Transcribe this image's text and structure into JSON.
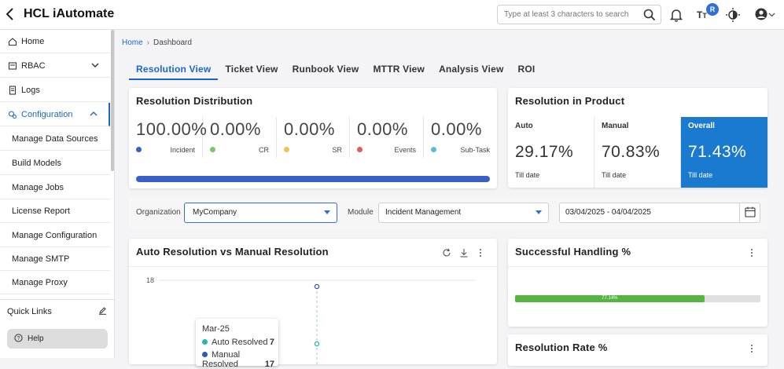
{
  "app": {
    "title": "HCL iAutomate"
  },
  "search": {
    "placeholder": "Type at least 3 characters to search"
  },
  "header": {
    "avatar_badge": "R"
  },
  "sidebar": {
    "items": [
      {
        "label": "Home"
      },
      {
        "label": "RBAC"
      },
      {
        "label": "Logs"
      },
      {
        "label": "Configuration"
      },
      {
        "label": "Manage Data Sources"
      },
      {
        "label": "Build Models"
      },
      {
        "label": "Manage Jobs"
      },
      {
        "label": "License Report"
      },
      {
        "label": "Manage Configuration"
      },
      {
        "label": "Manage SMTP"
      },
      {
        "label": "Manage Proxy"
      }
    ],
    "quick_links": "Quick Links",
    "help": "Help"
  },
  "breadcrumb": {
    "home": "Home",
    "current": "Dashboard"
  },
  "tabs": [
    {
      "label": "Resolution View"
    },
    {
      "label": "Ticket View"
    },
    {
      "label": "Runbook View"
    },
    {
      "label": "MTTR View"
    },
    {
      "label": "Analysis View"
    },
    {
      "label": "ROI"
    }
  ],
  "distribution": {
    "title": "Resolution Distribution",
    "items": [
      {
        "value": "100.00%",
        "label": "Incident",
        "color": "#3b5fc8"
      },
      {
        "value": "0.00%",
        "label": "CR",
        "color": "#7cc56b"
      },
      {
        "value": "0.00%",
        "label": "SR",
        "color": "#f2c24a"
      },
      {
        "value": "0.00%",
        "label": "Events",
        "color": "#e25c5c"
      },
      {
        "value": "0.00%",
        "label": "Sub-Task",
        "color": "#5bbcd8"
      }
    ]
  },
  "product": {
    "title": "Resolution in Product",
    "items": [
      {
        "header": "Auto",
        "value": "29.17%",
        "sub": "Till date"
      },
      {
        "header": "Manual",
        "value": "70.83%",
        "sub": "Till date"
      },
      {
        "header": "Overall",
        "value": "71.43%",
        "sub": "Till date"
      }
    ]
  },
  "filters": {
    "organization_label": "Organization",
    "organization_value": "MyCompany",
    "module_label": "Module",
    "module_value": "Incident Management",
    "date_range": "03/04/2025 - 04/04/2025"
  },
  "auto_vs_manual": {
    "title": "Auto Resolution vs Manual Resolution",
    "y_tick": "18",
    "tooltip": {
      "title": "Mar-25",
      "rows": [
        {
          "label": "Auto Resolved",
          "value": "7",
          "color": "#26b5b5"
        },
        {
          "label": "Manual Resolved",
          "value": "17",
          "color": "#2f57b5"
        }
      ]
    }
  },
  "handling": {
    "title": "Successful Handling %",
    "value_label": "77.14%",
    "value": 77.14
  },
  "rate": {
    "title": "Resolution Rate %"
  }
}
